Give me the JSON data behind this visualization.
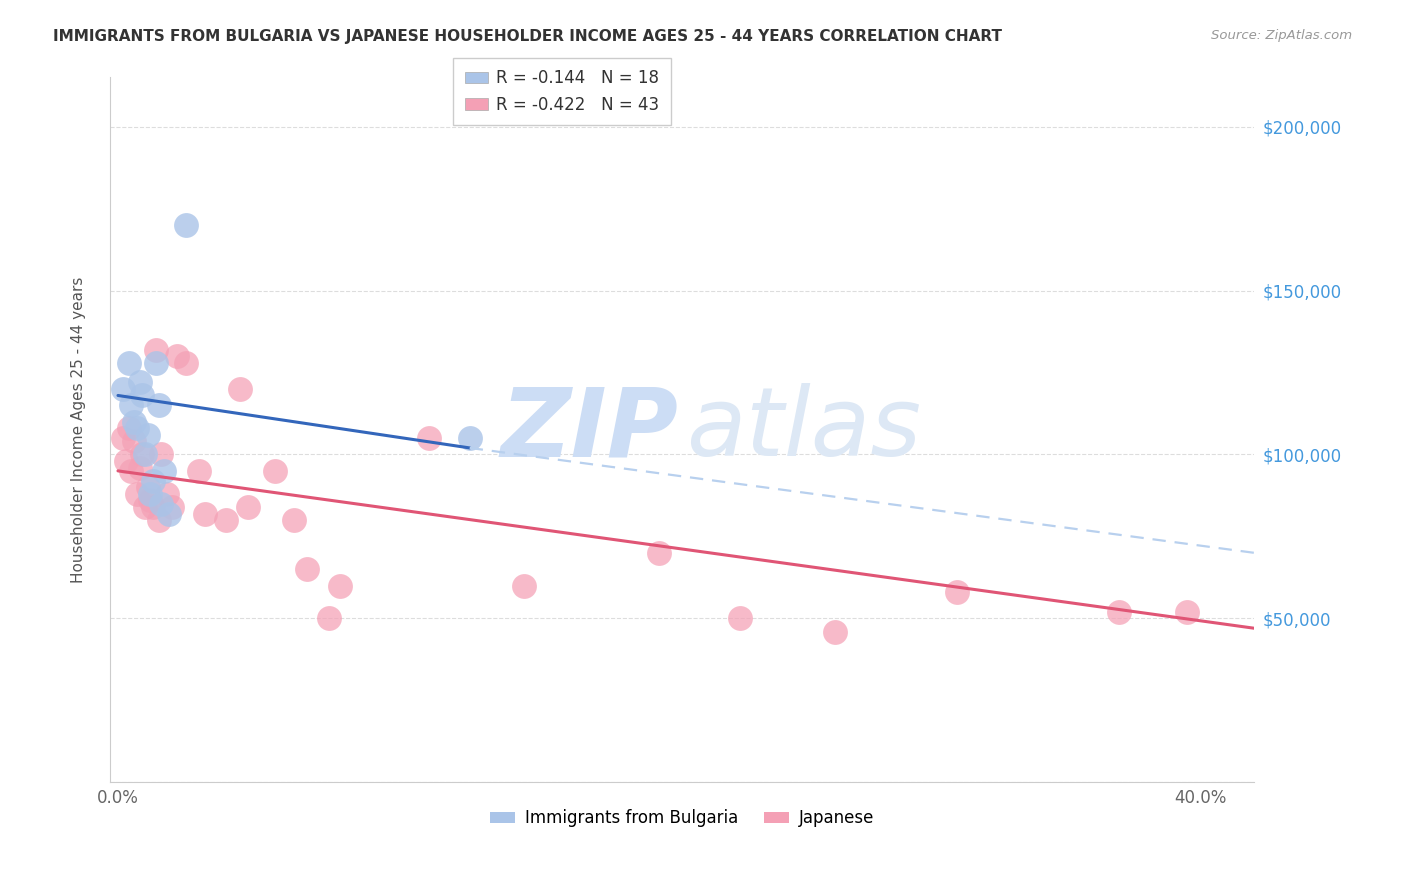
{
  "title": "IMMIGRANTS FROM BULGARIA VS JAPANESE HOUSEHOLDER INCOME AGES 25 - 44 YEARS CORRELATION CHART",
  "source": "Source: ZipAtlas.com",
  "ylabel": "Householder Income Ages 25 - 44 years",
  "xlim": [
    -0.003,
    0.42
  ],
  "ylim": [
    0,
    215000
  ],
  "ytick_vals": [
    0,
    50000,
    100000,
    150000,
    200000
  ],
  "ytick_right_labels": [
    "",
    "$50,000",
    "$100,000",
    "$150,000",
    "$200,000"
  ],
  "xtick_vals": [
    0.0,
    0.05,
    0.1,
    0.15,
    0.2,
    0.25,
    0.3,
    0.35,
    0.4
  ],
  "xtick_labels": [
    "0.0%",
    "",
    "",
    "",
    "",
    "",
    "",
    "",
    "40.0%"
  ],
  "bulgaria_color": "#aac4e8",
  "japanese_color": "#f4a0b5",
  "line_bulgaria_color": "#3366bb",
  "line_japanese_color": "#e05575",
  "line_ext_color": "#b8d0ee",
  "watermark_color": "#ccddf5",
  "bulgaria_scatter_x": [
    0.002,
    0.004,
    0.005,
    0.006,
    0.007,
    0.008,
    0.009,
    0.01,
    0.011,
    0.012,
    0.013,
    0.014,
    0.015,
    0.016,
    0.017,
    0.019,
    0.025,
    0.13
  ],
  "bulgaria_scatter_y": [
    120000,
    128000,
    115000,
    110000,
    108000,
    122000,
    118000,
    100000,
    106000,
    88000,
    92000,
    128000,
    115000,
    85000,
    95000,
    82000,
    170000,
    105000
  ],
  "japanese_scatter_x": [
    0.002,
    0.003,
    0.004,
    0.005,
    0.006,
    0.007,
    0.008,
    0.009,
    0.01,
    0.011,
    0.012,
    0.013,
    0.014,
    0.015,
    0.016,
    0.018,
    0.02,
    0.022,
    0.025,
    0.03,
    0.032,
    0.04,
    0.045,
    0.048,
    0.058,
    0.065,
    0.07,
    0.078,
    0.082,
    0.115,
    0.15,
    0.2,
    0.23,
    0.265,
    0.31,
    0.37,
    0.395
  ],
  "japanese_scatter_y": [
    105000,
    98000,
    108000,
    95000,
    104000,
    88000,
    96000,
    100000,
    84000,
    90000,
    86000,
    84000,
    132000,
    80000,
    100000,
    88000,
    84000,
    130000,
    128000,
    95000,
    82000,
    80000,
    120000,
    84000,
    95000,
    80000,
    65000,
    50000,
    60000,
    105000,
    60000,
    70000,
    50000,
    46000,
    58000,
    52000,
    52000
  ],
  "blue_line_x0": 0.0,
  "blue_line_x1": 0.13,
  "blue_line_y0": 118000,
  "blue_line_y1": 102000,
  "pink_line_x0": 0.0,
  "pink_line_x1": 0.42,
  "pink_line_y0": 95000,
  "pink_line_y1": 47000,
  "dash_line_x0": 0.13,
  "dash_line_x1": 0.42,
  "dash_line_y0": 102000,
  "dash_line_y1": 70000
}
